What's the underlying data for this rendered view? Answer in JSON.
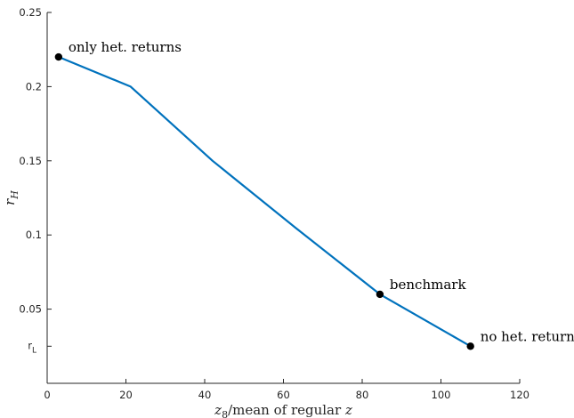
{
  "chart_data": {
    "type": "line",
    "xlabel": "z_8/mean of regular z",
    "xlabel_parts": {
      "sym": "z",
      "sub": "8",
      "mid": "/mean of regular ",
      "sym2": "z"
    },
    "ylabel": "r_H",
    "ylabel_parts": {
      "sym": "r",
      "sub": "H"
    },
    "xlim": [
      0,
      120
    ],
    "ylim": [
      0,
      0.25
    ],
    "xticks": [
      0,
      20,
      40,
      60,
      80,
      100,
      120
    ],
    "xtick_labels": [
      "0",
      "20",
      "40",
      "60",
      "80",
      "100",
      "120"
    ],
    "yticks": [
      0.05,
      0.1,
      0.15,
      0.2,
      0.25
    ],
    "ytick_labels": [
      "0.05",
      "0.1",
      "0.15",
      "0.2",
      "0.25"
    ],
    "special_ytick": {
      "value": 0.025,
      "label": "r",
      "sub": "L"
    },
    "series": [
      {
        "color": "#0072BD",
        "x": [
          2.9,
          21.2,
          42.0,
          63.0,
          84.5,
          107.5
        ],
        "y": [
          0.22,
          0.2,
          0.15,
          0.105,
          0.06,
          0.025
        ]
      }
    ],
    "markers": [
      {
        "x": 2.9,
        "y": 0.22,
        "label": "only het. returns"
      },
      {
        "x": 84.5,
        "y": 0.06,
        "label": "benchmark"
      },
      {
        "x": 107.5,
        "y": 0.025,
        "label": "no het. returns"
      }
    ],
    "grid": false,
    "box": false
  }
}
